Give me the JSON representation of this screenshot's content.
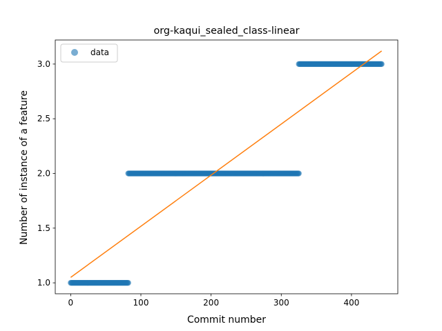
{
  "chart_data": {
    "type": "scatter",
    "title": "org-kaqui_sealed_class-linear",
    "xlabel": "Commit number",
    "ylabel": "Number of instance of a feature",
    "xlim": [
      -22,
      466
    ],
    "ylim": [
      0.9,
      3.22
    ],
    "xticks": [
      0,
      100,
      200,
      300,
      400
    ],
    "yticks": [
      1.0,
      1.5,
      2.0,
      2.5,
      3.0
    ],
    "xtick_labels": [
      "0",
      "100",
      "200",
      "300",
      "400"
    ],
    "ytick_labels": [
      "1.0",
      "1.5",
      "2.0",
      "2.5",
      "3.0"
    ],
    "legend_position": "top-left",
    "grid": false,
    "series": [
      {
        "name": "data",
        "kind": "scatter",
        "color": "#1f77b4",
        "segments": [
          {
            "x_start": 0,
            "x_end": 82,
            "y": 1.0
          },
          {
            "x_start": 82,
            "x_end": 325,
            "y": 2.0
          },
          {
            "x_start": 325,
            "x_end": 443,
            "y": 3.0
          }
        ]
      },
      {
        "kind": "line",
        "color": "#ff7f0e",
        "points": [
          [
            0,
            1.05
          ],
          [
            443,
            3.12
          ]
        ]
      }
    ]
  }
}
